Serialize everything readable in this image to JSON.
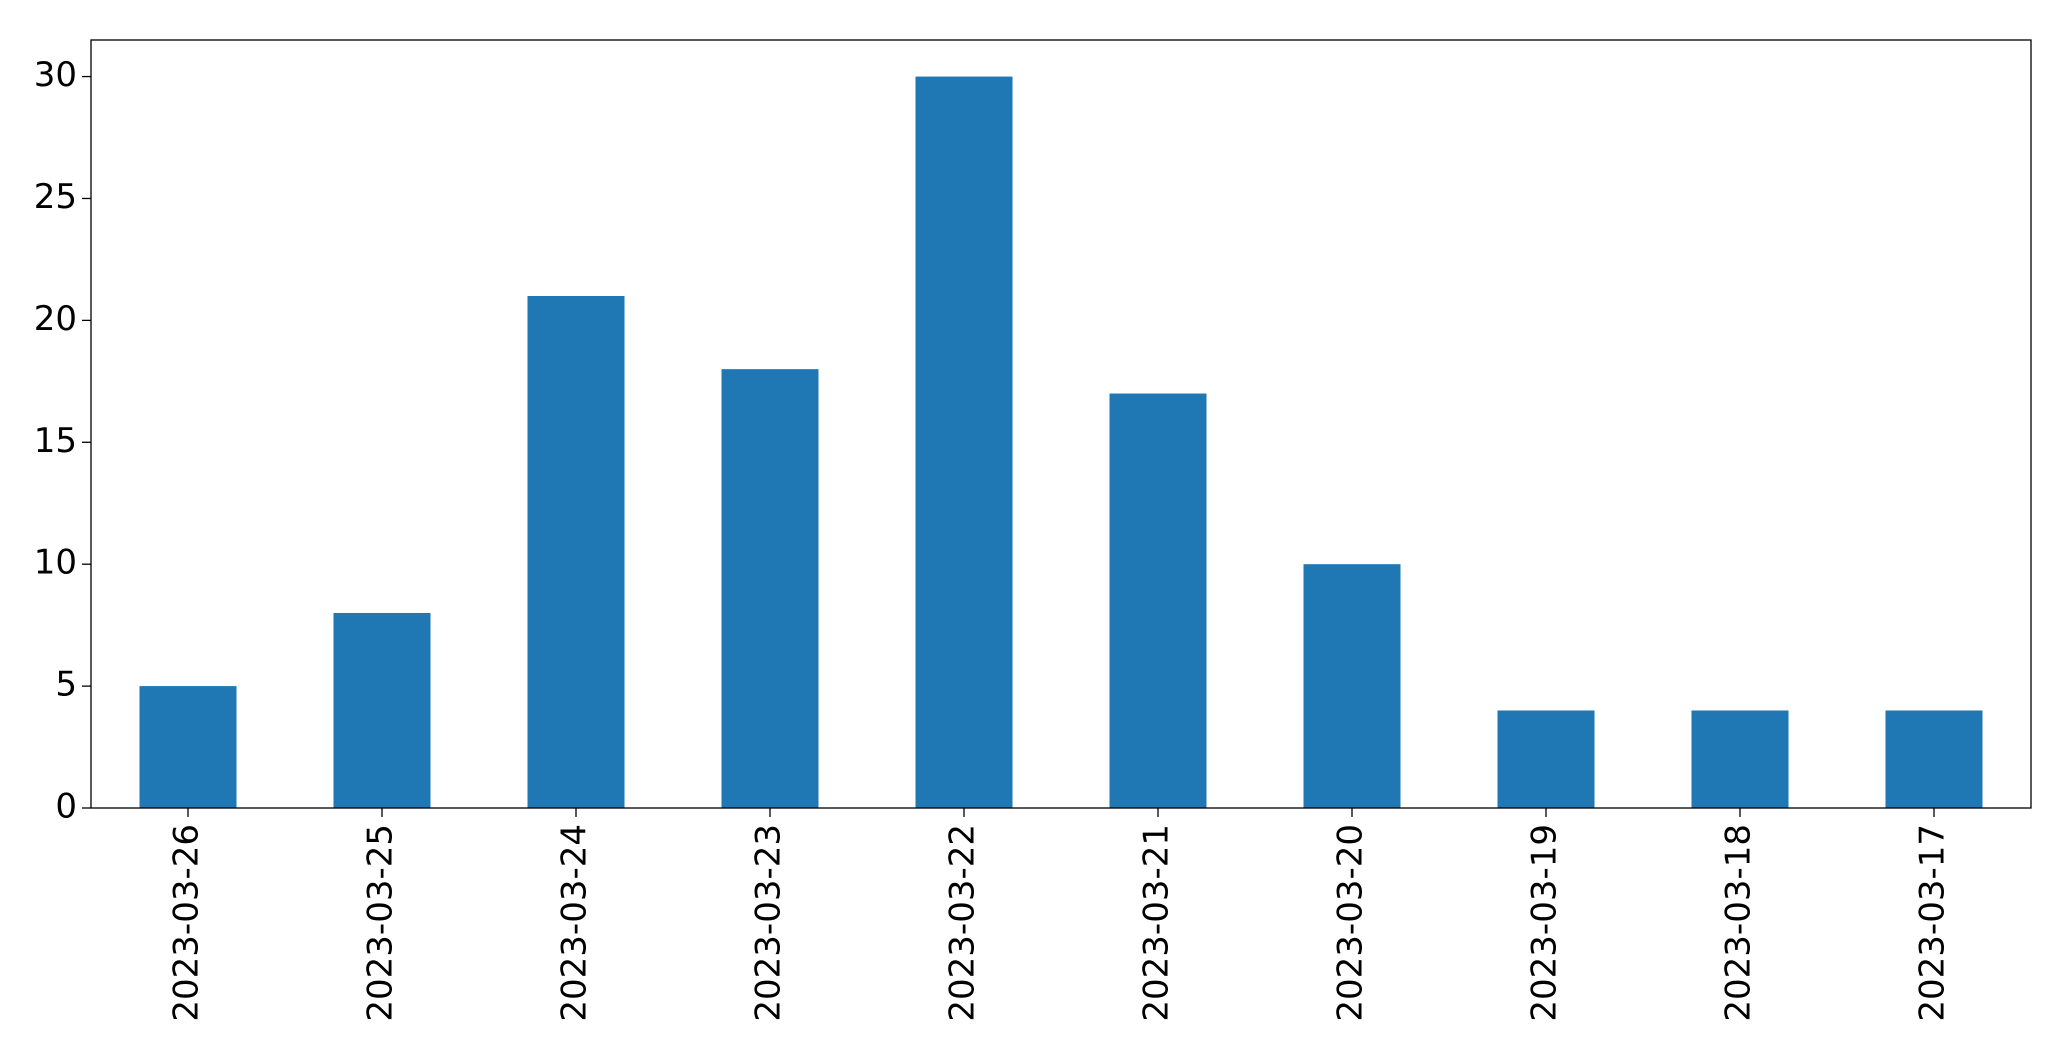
{
  "chart_data": {
    "type": "bar",
    "categories": [
      "2023-03-26",
      "2023-03-25",
      "2023-03-24",
      "2023-03-23",
      "2023-03-22",
      "2023-03-21",
      "2023-03-20",
      "2023-03-19",
      "2023-03-18",
      "2023-03-17"
    ],
    "values": [
      5,
      8,
      21,
      18,
      30,
      17,
      10,
      4,
      4,
      4
    ],
    "color": "#1f77b4",
    "ylim": [
      0,
      31.5
    ],
    "yticks": [
      0,
      5,
      10,
      15,
      20,
      25,
      30
    ],
    "grid": false
  }
}
